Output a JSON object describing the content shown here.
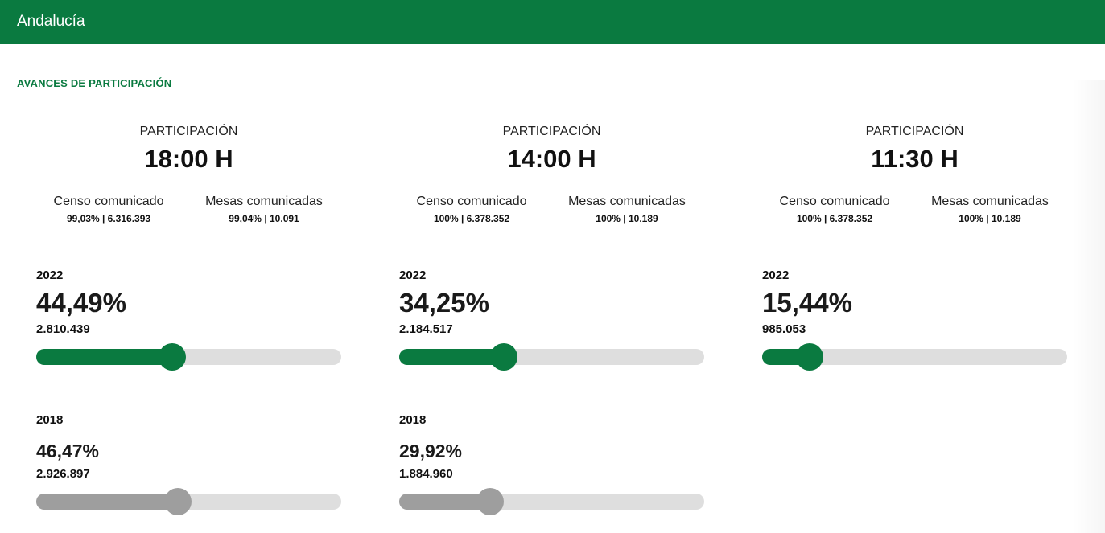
{
  "header": {
    "title": "Andalucía",
    "bar_color": "#0a7a40"
  },
  "section": {
    "title": "AVANCES DE PARTICIPACIÓN"
  },
  "colors": {
    "accent": "#0a7a40",
    "previous": "#9e9e9e",
    "track": "#dedede"
  },
  "columns": [
    {
      "label": "PARTICIPACIÓN",
      "time": "18:00 H",
      "censo": {
        "label": "Censo comunicado",
        "value": "99,03% | 6.316.393"
      },
      "mesas": {
        "label": "Mesas comunicadas",
        "value": "99,04% | 10.091"
      },
      "current": {
        "year": "2022",
        "percent": "44,49%",
        "votes": "2.810.439",
        "level": 44.49
      },
      "previous": {
        "year": "2018",
        "percent": "46,47%",
        "votes": "2.926.897",
        "level": 46.47
      }
    },
    {
      "label": "PARTICIPACIÓN",
      "time": "14:00 H",
      "censo": {
        "label": "Censo comunicado",
        "value": "100% | 6.378.352"
      },
      "mesas": {
        "label": "Mesas comunicadas",
        "value": "100% | 10.189"
      },
      "current": {
        "year": "2022",
        "percent": "34,25%",
        "votes": "2.184.517",
        "level": 34.25
      },
      "previous": {
        "year": "2018",
        "percent": "29,92%",
        "votes": "1.884.960",
        "level": 29.92
      }
    },
    {
      "label": "PARTICIPACIÓN",
      "time": "11:30 H",
      "censo": {
        "label": "Censo comunicado",
        "value": "100% | 6.378.352"
      },
      "mesas": {
        "label": "Mesas comunicadas",
        "value": "100% | 10.189"
      },
      "current": {
        "year": "2022",
        "percent": "15,44%",
        "votes": "985.053",
        "level": 15.44
      }
    }
  ]
}
